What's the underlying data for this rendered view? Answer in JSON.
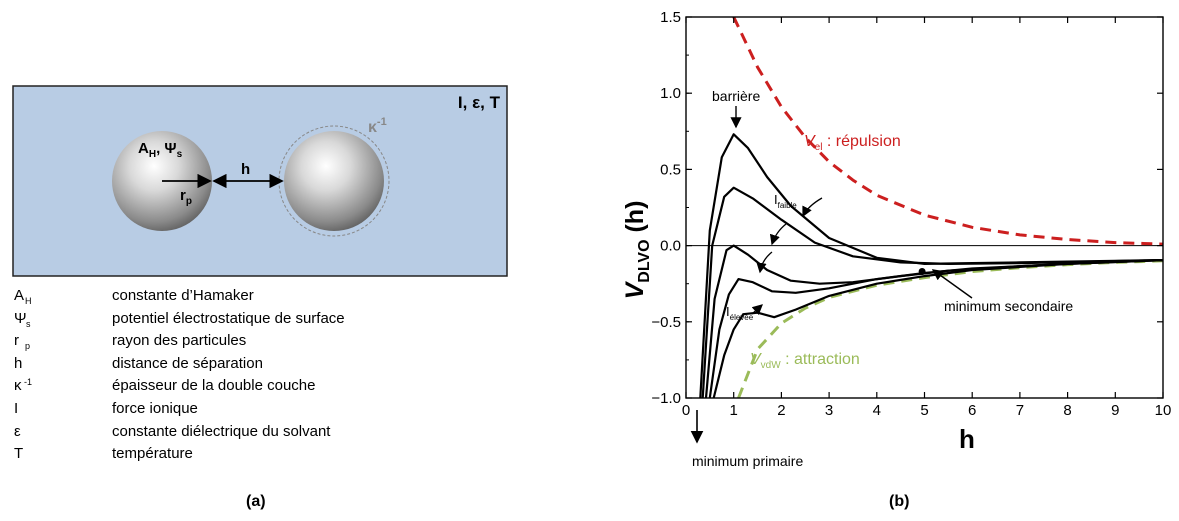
{
  "panel_a": {
    "conditions_label": "I, ε, T",
    "debye_symbol": "κ",
    "debye_exp": "-1",
    "hamaker_label": "A",
    "hamaker_sub": "H",
    "potential_label": ", Ψ",
    "potential_sub": "s",
    "distance_label": "h",
    "radius_label": "r",
    "radius_sub": "p",
    "legend": [
      {
        "sym": "A",
        "sub": "H",
        "sup": "",
        "desc": "constante d’Hamaker"
      },
      {
        "sym": "Ψ",
        "sub": "s",
        "sup": "",
        "desc": "potentiel électrostatique de surface"
      },
      {
        "sym": "r",
        "sub": "p",
        "sup": "",
        "desc": "rayon des particules"
      },
      {
        "sym": "h",
        "sub": "",
        "sup": "",
        "desc": "distance de séparation"
      },
      {
        "sym": "κ",
        "sub": "",
        "sup": "-1",
        "desc": "épaisseur de la double couche"
      },
      {
        "sym": "I",
        "sub": "",
        "sup": "",
        "desc": "force ionique"
      },
      {
        "sym": "ε",
        "sub": "",
        "sup": "",
        "desc": "constante diélectrique du solvant"
      },
      {
        "sym": "T",
        "sub": "",
        "sup": "",
        "desc": "température"
      }
    ],
    "caption": "(a)",
    "colors": {
      "box_fill": "#b8cce4",
      "box_stroke": "#222222"
    }
  },
  "panel_b": {
    "caption": "(b)",
    "ylabel_main": "V",
    "ylabel_sub": "DLVO",
    "ylabel_tail": " (h)",
    "xlabel": "h",
    "annotations": {
      "barrier": "barrière",
      "rep_V": "V",
      "rep_sub": "el",
      "rep_text": " : répulsion",
      "att_V": "V",
      "att_sub": "vdW",
      "att_text": " : attraction",
      "i_low": "I",
      "i_low_sub": "faible",
      "i_high": "I",
      "i_high_sub": "élevée",
      "min_secondary": "minimum secondaire",
      "min_primary": "minimum primaire"
    },
    "colors": {
      "repulsion": "#cc1f1f",
      "attraction": "#9bbb59",
      "curves": "#000000"
    }
  },
  "chart_data": {
    "type": "line",
    "xlim": [
      0,
      10
    ],
    "ylim": [
      -1.0,
      1.5
    ],
    "xticks": [
      "0",
      "1",
      "2",
      "3",
      "4",
      "5",
      "6",
      "7",
      "8",
      "9",
      "10"
    ],
    "yticks": [
      "−1.0",
      "−0.5",
      "0.0",
      "0.5",
      "1.0",
      "1.5"
    ],
    "xlabel": "h",
    "ylabel": "VDLVO (h)",
    "series": [
      {
        "name": "Vel : répulsion",
        "style": "dashed",
        "color": "#cc1f1f",
        "x": [
          1.0,
          1.5,
          2,
          2.5,
          3,
          3.5,
          4,
          5,
          6,
          7,
          8,
          9,
          10
        ],
        "y": [
          1.5,
          1.17,
          0.91,
          0.71,
          0.55,
          0.43,
          0.33,
          0.2,
          0.12,
          0.07,
          0.04,
          0.02,
          0.01
        ]
      },
      {
        "name": "VvdW : attraction",
        "style": "dashed",
        "color": "#9bbb59",
        "x": [
          1.1,
          1.5,
          2,
          2.5,
          3,
          4,
          5,
          6,
          7,
          8,
          9,
          10
        ],
        "y": [
          -1.0,
          -0.68,
          -0.51,
          -0.41,
          -0.34,
          -0.26,
          -0.21,
          -0.17,
          -0.145,
          -0.125,
          -0.11,
          -0.1
        ]
      },
      {
        "name": "",
        "style": "solid",
        "color": "#000000",
        "x": [
          0.3,
          0.5,
          0.75,
          1.0,
          1.3,
          1.7,
          2.2,
          3,
          4,
          5,
          6,
          7,
          8,
          9,
          10
        ],
        "y": [
          -1.0,
          0.1,
          0.58,
          0.73,
          0.64,
          0.45,
          0.26,
          0.05,
          -0.08,
          -0.12,
          -0.115,
          -0.11,
          -0.105,
          -0.1,
          -0.095
        ]
      },
      {
        "name": "",
        "style": "solid",
        "color": "#000000",
        "x": [
          0.35,
          0.55,
          0.8,
          1.0,
          1.4,
          2.0,
          2.7,
          3.5,
          4.5,
          5.5,
          7,
          8.5,
          10
        ],
        "y": [
          -1.0,
          0.0,
          0.32,
          0.38,
          0.31,
          0.17,
          0.02,
          -0.07,
          -0.11,
          -0.12,
          -0.115,
          -0.105,
          -0.095
        ]
      },
      {
        "name": "",
        "style": "solid",
        "color": "#000000",
        "x": [
          0.42,
          0.6,
          0.85,
          1.0,
          1.3,
          1.7,
          2.2,
          2.8,
          3.5,
          4.5,
          5.5,
          7,
          8.5,
          10
        ],
        "y": [
          -1.0,
          -0.35,
          -0.03,
          0.0,
          -0.06,
          -0.16,
          -0.23,
          -0.25,
          -0.24,
          -0.2,
          -0.165,
          -0.135,
          -0.11,
          -0.095
        ]
      },
      {
        "name": "",
        "style": "solid",
        "color": "#000000",
        "x": [
          0.5,
          0.7,
          0.9,
          1.1,
          1.4,
          1.8,
          2.3,
          3,
          4,
          5,
          6,
          8,
          10
        ],
        "y": [
          -1.0,
          -0.55,
          -0.32,
          -0.22,
          -0.24,
          -0.3,
          -0.31,
          -0.28,
          -0.22,
          -0.18,
          -0.15,
          -0.12,
          -0.095
        ]
      },
      {
        "name": "",
        "style": "solid",
        "color": "#000000",
        "x": [
          0.58,
          0.8,
          1.0,
          1.2,
          1.5,
          1.85,
          2.3,
          3,
          4,
          5,
          6,
          8,
          10
        ],
        "y": [
          -1.0,
          -0.72,
          -0.55,
          -0.45,
          -0.44,
          -0.47,
          -0.42,
          -0.33,
          -0.25,
          -0.2,
          -0.16,
          -0.12,
          -0.095
        ]
      }
    ],
    "points": [
      {
        "x": 4.95,
        "y": -0.17
      }
    ]
  }
}
